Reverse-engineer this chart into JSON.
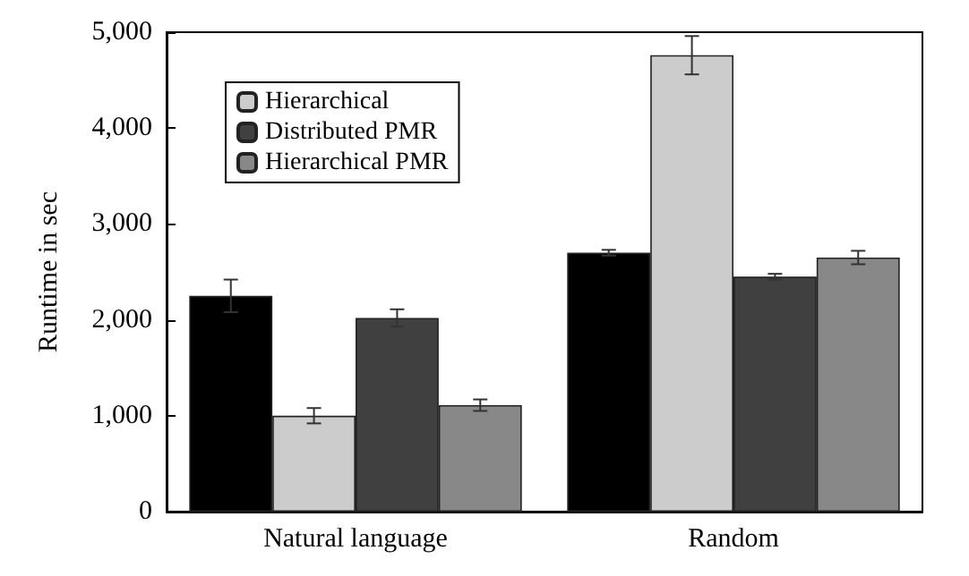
{
  "chart_data": {
    "type": "bar",
    "ylabel": "Runtime in sec",
    "categories": [
      "Natural language",
      "Random"
    ],
    "series": [
      {
        "color": "#000000",
        "values": [
          2250,
          2700
        ],
        "errors": [
          170,
          30
        ]
      },
      {
        "name": "Hierarchical",
        "color": "#cccccc",
        "values": [
          1000,
          4760
        ],
        "errors": [
          80,
          200
        ]
      },
      {
        "name": "Distributed PMR",
        "color": "#404040",
        "values": [
          2020,
          2450
        ],
        "errors": [
          90,
          30
        ]
      },
      {
        "name": "Hierarchical PMR",
        "color": "#888888",
        "values": [
          1110,
          2650
        ],
        "errors": [
          60,
          70
        ]
      }
    ],
    "ylim": [
      0,
      5000
    ],
    "yticks": [
      0,
      {
        "value": 1000,
        "label": "1,000"
      },
      {
        "value": 2000,
        "label": "2,000"
      },
      {
        "value": 3000,
        "label": "3,000"
      },
      {
        "value": 4000,
        "label": "4,000"
      },
      {
        "value": 5000,
        "label": "5,000"
      }
    ],
    "grid": false,
    "legend": "top left"
  }
}
